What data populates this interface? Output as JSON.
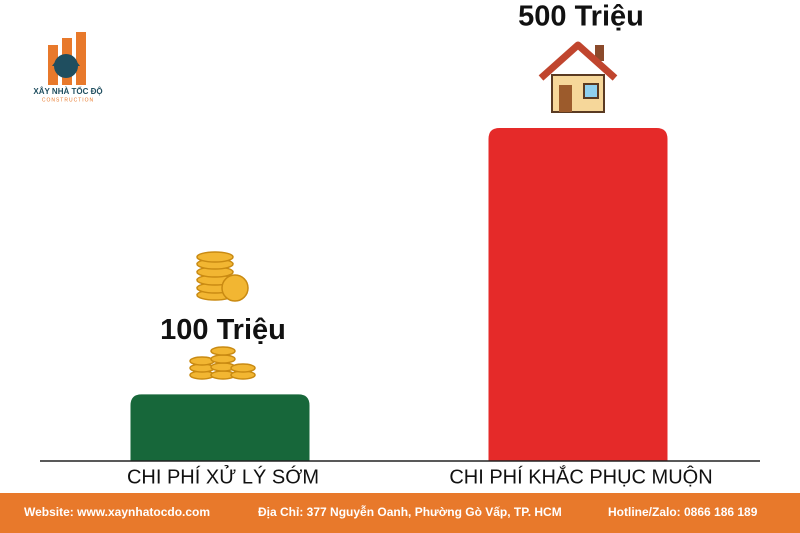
{
  "logo": {
    "name": "XÂY NHÀ TỐC ĐỘ",
    "tagline": "CONSTRUCTION"
  },
  "chart_data": {
    "type": "bar",
    "categories": [
      "CHI PHÍ XỬ LÝ SỚM",
      "CHI PHÍ KHẮC PHỤC MUỘN"
    ],
    "values": [
      100,
      500
    ],
    "value_labels": [
      "100 Triệu",
      "500 Triệu"
    ],
    "colors": [
      "#17673a",
      "#e52a29"
    ]
  },
  "footer": {
    "website": "Website: www.xaynhatocdo.com",
    "address": "Địa Chỉ: 377 Nguyễn Oanh, Phường Gò Vấp, TP. HCM",
    "hotline": "Hotline/Zalo: 0866 186 189"
  }
}
